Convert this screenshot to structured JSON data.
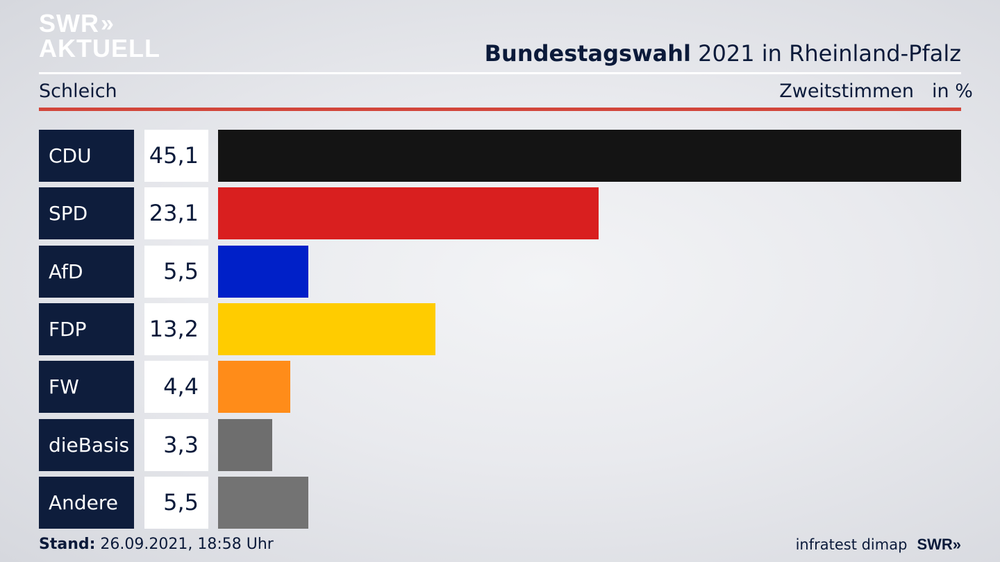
{
  "logo": {
    "line1": "SWR",
    "line2": "AKTUELL",
    "chevrons": "»"
  },
  "header": {
    "title_bold": "Bundestagswahl",
    "title_rest": " 2021 in Rheinland-Pfalz",
    "subtitle": "Schleich",
    "metric": "Zweitstimmen",
    "unit": "in %"
  },
  "chart_data": {
    "type": "bar",
    "orientation": "horizontal",
    "categories": [
      "CDU",
      "SPD",
      "AfD",
      "FDP",
      "FW",
      "dieBasis",
      "Andere"
    ],
    "values": [
      45.1,
      23.1,
      5.5,
      13.2,
      4.4,
      3.3,
      5.5
    ],
    "value_labels": [
      "45,1",
      "23,1",
      "5,5",
      "13,2",
      "4,4",
      "3,3",
      "5,5"
    ],
    "colors": [
      "#141414",
      "#d91f1f",
      "#0020c8",
      "#ffcc00",
      "#ff8c19",
      "#6e6e6e",
      "#737373"
    ],
    "title": "Bundestagswahl 2021 in Rheinland-Pfalz",
    "xlabel": "",
    "ylabel": "",
    "unit": "in %",
    "grid": false,
    "legend": "none"
  },
  "footer": {
    "stand_label": "Stand:",
    "stand_value": " 26.09.2021, 18:58 Uhr",
    "source": "infratest dimap",
    "brand": "SWR»"
  }
}
